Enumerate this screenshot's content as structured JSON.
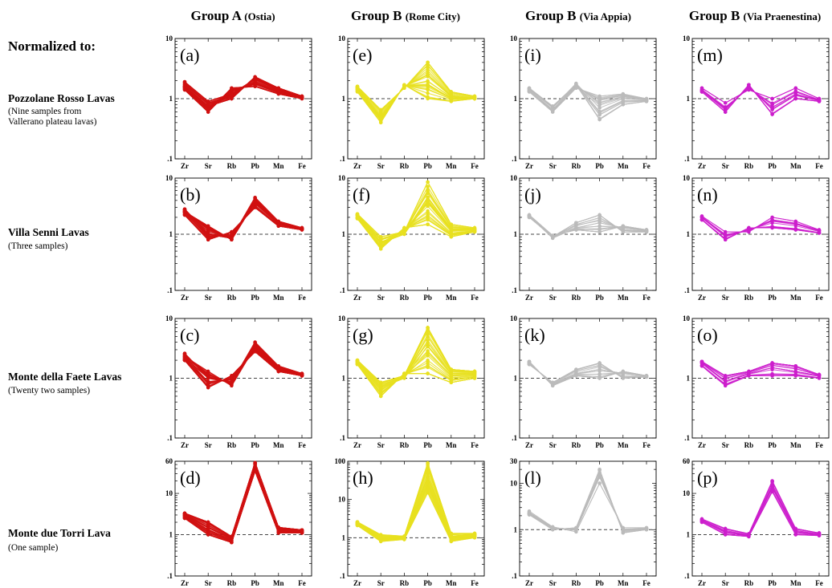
{
  "header": {
    "normalized_label": "Normalized to:",
    "columns": [
      {
        "name": "Group A",
        "sub": "(Ostia)"
      },
      {
        "name": "Group B",
        "sub": "(Rome City)"
      },
      {
        "name": "Group B",
        "sub": "(Via Appia)"
      },
      {
        "name": "Group B",
        "sub": "(Via Praenestina)"
      }
    ],
    "rows": [
      {
        "title": "Pozzolane Rosso Lavas",
        "sub": [
          "(Nine samples from",
          "Vallerano plateau lavas)"
        ]
      },
      {
        "title": "Villa Senni Lavas",
        "sub": [
          "(Three samples)"
        ]
      },
      {
        "title": "Monte della Faete Lavas",
        "sub": [
          "(Twenty two samples)"
        ]
      },
      {
        "title": "Monte due Torri Lava",
        "sub": [
          "(One sample)"
        ]
      }
    ]
  },
  "colors": {
    "group_a": "#d01010",
    "rome_city": "#e8e020",
    "via_appia": "#bbbbbb",
    "via_praenestina": "#cc1ecc",
    "reference_line": "#444444"
  },
  "chart_data": [
    {
      "label": "(a)",
      "type": "line",
      "yscale": "log",
      "ylim": [
        0.1,
        10
      ],
      "yticks": [
        "10",
        "1",
        ".1"
      ],
      "categories": [
        "Zr",
        "Sr",
        "Rb",
        "Pb",
        "Mn",
        "Fe"
      ],
      "reference": 1,
      "series_count": 30,
      "series": [
        {
          "values": [
            1.9,
            0.9,
            1.2,
            2.1,
            1.4,
            1.05
          ]
        },
        {
          "values": [
            1.4,
            0.6,
            1.5,
            1.6,
            1.2,
            1.0
          ]
        },
        {
          "values": [
            1.6,
            0.75,
            1.0,
            2.3,
            1.5,
            1.1
          ]
        }
      ]
    },
    {
      "label": "(b)",
      "type": "line",
      "yscale": "log",
      "ylim": [
        0.1,
        10
      ],
      "yticks": [
        "10",
        "1",
        ".1"
      ],
      "categories": [
        "Zr",
        "Sr",
        "Rb",
        "Pb",
        "Mn",
        "Fe"
      ],
      "reference": 1,
      "series_count": 30,
      "series": [
        {
          "values": [
            2.8,
            1.0,
            0.85,
            4.5,
            1.7,
            1.3
          ]
        },
        {
          "values": [
            2.2,
            0.8,
            1.1,
            3.0,
            1.4,
            1.2
          ]
        },
        {
          "values": [
            2.5,
            1.4,
            0.8,
            3.8,
            1.6,
            1.25
          ]
        }
      ]
    },
    {
      "label": "(c)",
      "type": "line",
      "yscale": "log",
      "ylim": [
        0.1,
        10
      ],
      "yticks": [
        "10",
        "1",
        ".1"
      ],
      "categories": [
        "Zr",
        "Sr",
        "Rb",
        "Pb",
        "Mn",
        "Fe"
      ],
      "reference": 1,
      "series_count": 30,
      "series": [
        {
          "values": [
            2.6,
            1.0,
            0.85,
            4.0,
            1.6,
            1.2
          ]
        },
        {
          "values": [
            2.0,
            0.7,
            1.1,
            2.8,
            1.3,
            1.1
          ]
        },
        {
          "values": [
            2.3,
            1.3,
            0.75,
            3.4,
            1.5,
            1.15
          ]
        }
      ]
    },
    {
      "label": "(d)",
      "type": "line",
      "yscale": "log",
      "ylim": [
        0.1,
        60
      ],
      "yticks": [
        "60",
        "10",
        "1",
        ".1"
      ],
      "categories": [
        "Zr",
        "Sr",
        "Rb",
        "Pb",
        "Mn",
        "Fe"
      ],
      "reference": 1,
      "series_count": 30,
      "series": [
        {
          "values": [
            3.0,
            1.5,
            0.8,
            45,
            1.3,
            1.2
          ]
        },
        {
          "values": [
            2.5,
            1.0,
            0.65,
            35,
            1.1,
            1.1
          ]
        },
        {
          "values": [
            3.3,
            2.0,
            0.9,
            55,
            1.5,
            1.3
          ]
        }
      ]
    },
    {
      "label": "(e)",
      "type": "line",
      "yscale": "log",
      "ylim": [
        0.1,
        10
      ],
      "yticks": [
        "10",
        "1",
        ".1"
      ],
      "categories": [
        "Zr",
        "Sr",
        "Rb",
        "Pb",
        "Mn",
        "Fe"
      ],
      "reference": 1,
      "series_count": 30,
      "series": [
        {
          "values": [
            1.5,
            0.5,
            1.6,
            2.5,
            1.1,
            1.0
          ]
        },
        {
          "values": [
            1.3,
            0.4,
            1.7,
            1.0,
            0.9,
            1.0
          ]
        },
        {
          "values": [
            1.6,
            0.65,
            1.5,
            4.0,
            1.3,
            1.1
          ]
        }
      ]
    },
    {
      "label": "(f)",
      "type": "line",
      "yscale": "log",
      "ylim": [
        0.1,
        10
      ],
      "yticks": [
        "10",
        "1",
        ".1"
      ],
      "categories": [
        "Zr",
        "Sr",
        "Rb",
        "Pb",
        "Mn",
        "Fe"
      ],
      "reference": 1,
      "series_count": 30,
      "series": [
        {
          "values": [
            2.2,
            0.7,
            1.0,
            4.0,
            1.2,
            1.2
          ]
        },
        {
          "values": [
            1.9,
            0.55,
            1.3,
            1.5,
            0.9,
            1.1
          ]
        },
        {
          "values": [
            2.3,
            0.9,
            1.1,
            8.5,
            1.5,
            1.3
          ]
        }
      ]
    },
    {
      "label": "(g)",
      "type": "line",
      "yscale": "log",
      "ylim": [
        0.1,
        10
      ],
      "yticks": [
        "10",
        "1",
        ".1"
      ],
      "categories": [
        "Zr",
        "Sr",
        "Rb",
        "Pb",
        "Mn",
        "Fe"
      ],
      "reference": 1,
      "series_count": 30,
      "series": [
        {
          "values": [
            1.9,
            0.7,
            1.0,
            3.5,
            1.2,
            1.2
          ]
        },
        {
          "values": [
            1.7,
            0.5,
            1.2,
            1.2,
            0.85,
            1.0
          ]
        },
        {
          "values": [
            2.0,
            0.85,
            1.1,
            7.0,
            1.4,
            1.3
          ]
        }
      ]
    },
    {
      "label": "(h)",
      "type": "line",
      "yscale": "log",
      "ylim": [
        0.1,
        100
      ],
      "yticks": [
        "100",
        "10",
        "1",
        ".1"
      ],
      "categories": [
        "Zr",
        "Sr",
        "Rb",
        "Pb",
        "Mn",
        "Fe"
      ],
      "reference": 1,
      "series_count": 30,
      "series": [
        {
          "values": [
            2.4,
            1.0,
            1.0,
            40,
            1.1,
            1.2
          ]
        },
        {
          "values": [
            2.1,
            0.8,
            0.9,
            15,
            0.8,
            1.0
          ]
        },
        {
          "values": [
            2.6,
            1.2,
            1.1,
            90,
            1.3,
            1.3
          ]
        }
      ]
    },
    {
      "label": "(i)",
      "type": "line",
      "yscale": "log",
      "ylim": [
        0.1,
        10
      ],
      "yticks": [
        "10",
        "1",
        ".1"
      ],
      "categories": [
        "Zr",
        "Sr",
        "Rb",
        "Pb",
        "Mn",
        "Fe"
      ],
      "reference": 1,
      "series_count": 18,
      "series": [
        {
          "values": [
            1.4,
            0.7,
            1.8,
            0.7,
            1.0,
            0.95
          ]
        },
        {
          "values": [
            1.3,
            0.6,
            1.5,
            1.1,
            1.2,
            1.0
          ]
        },
        {
          "values": [
            1.5,
            0.75,
            1.7,
            0.45,
            0.8,
            0.9
          ]
        }
      ]
    },
    {
      "label": "(j)",
      "type": "line",
      "yscale": "log",
      "ylim": [
        0.1,
        10
      ],
      "yticks": [
        "10",
        "1",
        ".1"
      ],
      "categories": [
        "Zr",
        "Sr",
        "Rb",
        "Pb",
        "Mn",
        "Fe"
      ],
      "reference": 1,
      "series_count": 18,
      "series": [
        {
          "values": [
            2.1,
            0.85,
            1.3,
            1.6,
            1.3,
            1.15
          ]
        },
        {
          "values": [
            2.0,
            0.9,
            1.6,
            2.2,
            1.1,
            1.1
          ]
        },
        {
          "values": [
            2.2,
            0.95,
            1.2,
            1.1,
            1.4,
            1.2
          ]
        }
      ]
    },
    {
      "label": "(k)",
      "type": "line",
      "yscale": "log",
      "ylim": [
        0.1,
        10
      ],
      "yticks": [
        "10",
        "1",
        ".1"
      ],
      "categories": [
        "Zr",
        "Sr",
        "Rb",
        "Pb",
        "Mn",
        "Fe"
      ],
      "reference": 1,
      "series_count": 18,
      "series": [
        {
          "values": [
            1.8,
            0.8,
            1.2,
            1.4,
            1.2,
            1.1
          ]
        },
        {
          "values": [
            1.7,
            0.85,
            1.4,
            1.8,
            1.0,
            1.05
          ]
        },
        {
          "values": [
            1.9,
            0.75,
            1.1,
            1.0,
            1.3,
            1.1
          ]
        }
      ]
    },
    {
      "label": "(l)",
      "type": "line",
      "yscale": "log",
      "ylim": [
        0.1,
        30
      ],
      "yticks": [
        "30",
        "10",
        "1",
        ".1"
      ],
      "categories": [
        "Zr",
        "Sr",
        "Rb",
        "Pb",
        "Mn",
        "Fe"
      ],
      "reference": 1,
      "series_count": 18,
      "series": [
        {
          "values": [
            2.3,
            1.1,
            1.0,
            15,
            1.0,
            1.05
          ]
        },
        {
          "values": [
            2.1,
            1.0,
            1.1,
            20,
            0.85,
            1.0
          ]
        },
        {
          "values": [
            2.5,
            1.15,
            0.9,
            10,
            1.1,
            1.1
          ]
        }
      ]
    },
    {
      "label": "(m)",
      "type": "line",
      "yscale": "log",
      "ylim": [
        0.1,
        10
      ],
      "yticks": [
        "10",
        "1",
        ".1"
      ],
      "categories": [
        "Zr",
        "Sr",
        "Rb",
        "Pb",
        "Mn",
        "Fe"
      ],
      "reference": 1,
      "series_count": 14,
      "series": [
        {
          "values": [
            1.4,
            0.7,
            1.5,
            0.8,
            1.3,
            0.95
          ]
        },
        {
          "values": [
            1.3,
            0.6,
            1.7,
            0.55,
            1.0,
            0.9
          ]
        },
        {
          "values": [
            1.5,
            0.85,
            1.4,
            1.0,
            1.5,
            1.0
          ]
        }
      ]
    },
    {
      "label": "(n)",
      "type": "line",
      "yscale": "log",
      "ylim": [
        0.1,
        10
      ],
      "yticks": [
        "10",
        "1",
        ".1"
      ],
      "categories": [
        "Zr",
        "Sr",
        "Rb",
        "Pb",
        "Mn",
        "Fe"
      ],
      "reference": 1,
      "series_count": 14,
      "series": [
        {
          "values": [
            2.0,
            0.9,
            1.2,
            1.7,
            1.5,
            1.15
          ]
        },
        {
          "values": [
            1.8,
            0.8,
            1.3,
            1.3,
            1.2,
            1.05
          ]
        },
        {
          "values": [
            2.1,
            1.1,
            1.1,
            2.0,
            1.7,
            1.2
          ]
        }
      ]
    },
    {
      "label": "(o)",
      "type": "line",
      "yscale": "log",
      "ylim": [
        0.1,
        10
      ],
      "yticks": [
        "10",
        "1",
        ".1"
      ],
      "categories": [
        "Zr",
        "Sr",
        "Rb",
        "Pb",
        "Mn",
        "Fe"
      ],
      "reference": 1,
      "series_count": 14,
      "series": [
        {
          "values": [
            1.8,
            0.9,
            1.2,
            1.5,
            1.3,
            1.1
          ]
        },
        {
          "values": [
            1.6,
            0.75,
            1.1,
            1.1,
            1.1,
            1.0
          ]
        },
        {
          "values": [
            1.9,
            1.1,
            1.3,
            1.8,
            1.6,
            1.15
          ]
        }
      ]
    },
    {
      "label": "(p)",
      "type": "line",
      "yscale": "log",
      "ylim": [
        0.1,
        60
      ],
      "yticks": [
        "60",
        "10",
        "1",
        ".1"
      ],
      "categories": [
        "Zr",
        "Sr",
        "Rb",
        "Pb",
        "Mn",
        "Fe"
      ],
      "reference": 1,
      "series_count": 14,
      "series": [
        {
          "values": [
            2.2,
            1.2,
            0.95,
            15,
            1.2,
            1.0
          ]
        },
        {
          "values": [
            2.0,
            1.0,
            0.9,
            11,
            1.0,
            0.95
          ]
        },
        {
          "values": [
            2.4,
            1.4,
            1.05,
            20,
            1.4,
            1.1
          ]
        }
      ]
    }
  ]
}
